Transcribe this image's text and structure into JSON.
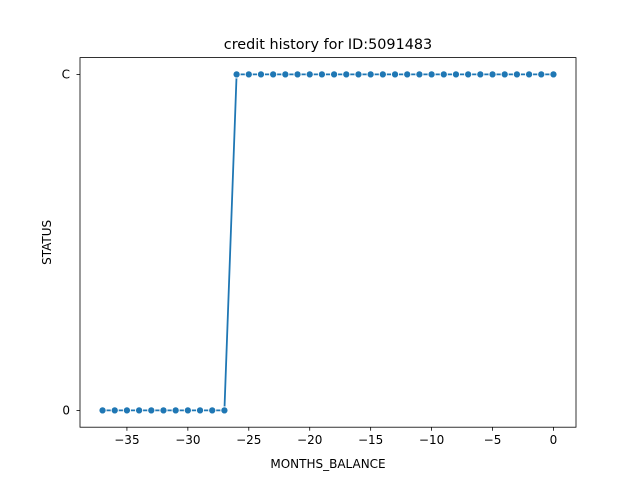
{
  "chart_data": {
    "type": "line",
    "title": "credit history for ID:5091483",
    "xlabel": "MONTHS_BALANCE",
    "ylabel": "STATUS",
    "x_ticks": [
      -35,
      -30,
      -25,
      -20,
      -15,
      -10,
      -5,
      0
    ],
    "x_tick_labels": [
      "−35",
      "−30",
      "−25",
      "−20",
      "−15",
      "−10",
      "−5",
      "0"
    ],
    "y_categories": [
      "0",
      "C"
    ],
    "xlim": [
      -38.85,
      1.85
    ],
    "grid": false,
    "legend": "none",
    "series": [
      {
        "color": "#1f77b4",
        "marker": "circle",
        "x": [
          -37,
          -36,
          -35,
          -34,
          -33,
          -32,
          -31,
          -30,
          -29,
          -28,
          -27,
          -26,
          -25,
          -24,
          -23,
          -22,
          -21,
          -20,
          -19,
          -18,
          -17,
          -16,
          -15,
          -14,
          -13,
          -12,
          -11,
          -10,
          -9,
          -8,
          -7,
          -6,
          -5,
          -4,
          -3,
          -2,
          -1,
          0
        ],
        "y": [
          "0",
          "0",
          "0",
          "0",
          "0",
          "0",
          "0",
          "0",
          "0",
          "0",
          "0",
          "C",
          "C",
          "C",
          "C",
          "C",
          "C",
          "C",
          "C",
          "C",
          "C",
          "C",
          "C",
          "C",
          "C",
          "C",
          "C",
          "C",
          "C",
          "C",
          "C",
          "C",
          "C",
          "C",
          "C",
          "C",
          "C",
          "C"
        ]
      }
    ]
  }
}
